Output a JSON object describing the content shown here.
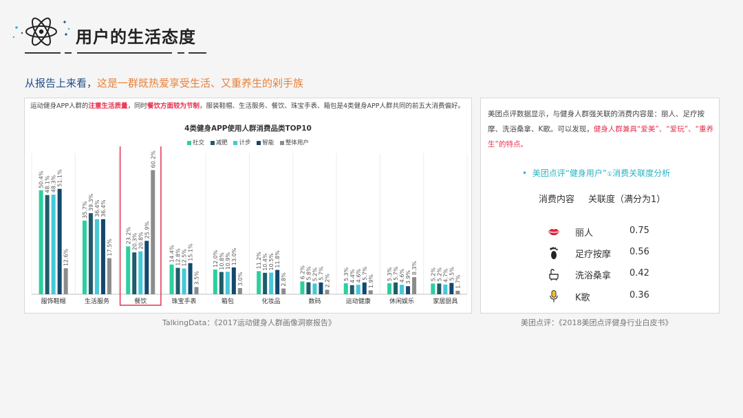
{
  "header": {
    "title": "用户的生活态度"
  },
  "subtitle": {
    "part1": "从报告上来看，",
    "part2": "这是一群既热爱享受生活、又重养生的剁手族"
  },
  "left_panel": {
    "intro_1": "运动健身APP人群的",
    "intro_hl1": "注重生活质量",
    "intro_2": "，同时",
    "intro_hl2": "餐饮方面较为节制",
    "intro_3": "，服装鞋帽、生活服务、餐饮、珠宝手表、箱包是4类健身APP人群共同的前五大消费偏好。",
    "source": "TalkingData：《2017运动健身人群画像洞察报告》"
  },
  "right_panel": {
    "text_1": "美团点评数据显示，与健身人群强关联的消费内容是：丽人、足疗按摩、洗浴桑拿、K歌。可以发现，",
    "text_hl": "健身人群兼具“爱美”、“爱玩”、“重养生”的特点。",
    "sub_bullet": "•",
    "sub_title": "美团点评“健身用户”",
    "sub_sup": "①",
    "sub_title2": "消费关联度分析",
    "col1": "消费内容",
    "col2": "关联度（满分为1）",
    "rows": [
      {
        "name": "丽人",
        "value": "0.75",
        "icon": "lips-icon"
      },
      {
        "name": "足疗按摩",
        "value": "0.56",
        "icon": "footprint-icon"
      },
      {
        "name": "洗浴桑拿",
        "value": "0.42",
        "icon": "bath-icon"
      },
      {
        "name": "K歌",
        "value": "0.36",
        "icon": "microphone-icon"
      }
    ],
    "source": "美团点评：《2018美团点评健身行业白皮书》"
  },
  "colors": {
    "社交": "#2ccfa0",
    "减肥": "#1f5b6b",
    "计步": "#45c8d8",
    "智能": "#14486e",
    "整体用户": "#8c8c8c",
    "highlight_box": "#e5304f"
  },
  "chart_data": {
    "type": "bar",
    "title": "4类健身APP使用人群消费品类TOP10",
    "categories": [
      "服饰鞋帽",
      "生活服务",
      "餐饮",
      "珠宝手表",
      "箱包",
      "化妆品",
      "数码",
      "运动健康",
      "休闲娱乐",
      "家居厨具"
    ],
    "highlight_category": "餐饮",
    "legend": [
      "社交",
      "减肥",
      "计步",
      "智能",
      "整体用户"
    ],
    "series": [
      {
        "name": "社交",
        "values": [
          50.4,
          35.7,
          23.2,
          14.4,
          12.0,
          11.2,
          6.2,
          5.3,
          5.3,
          5.2
        ]
      },
      {
        "name": "减肥",
        "values": [
          48.1,
          39.3,
          20.3,
          12.8,
          10.8,
          10.4,
          5.8,
          4.4,
          5.7,
          5.2
        ]
      },
      {
        "name": "计步",
        "values": [
          48.3,
          36.4,
          20.8,
          12.5,
          10.9,
          10.5,
          5.2,
          4.6,
          4.6,
          4.7
        ]
      },
      {
        "name": "智能",
        "values": [
          51.1,
          36.4,
          25.9,
          15.1,
          13.0,
          11.8,
          5.7,
          5.7,
          3.9,
          5.5
        ]
      },
      {
        "name": "整体用户",
        "values": [
          12.6,
          17.5,
          60.2,
          3.5,
          3.0,
          2.8,
          2.2,
          1.9,
          8.3,
          1.7
        ]
      }
    ],
    "ylim": [
      0,
      65
    ],
    "xlabel": "",
    "ylabel": ""
  }
}
